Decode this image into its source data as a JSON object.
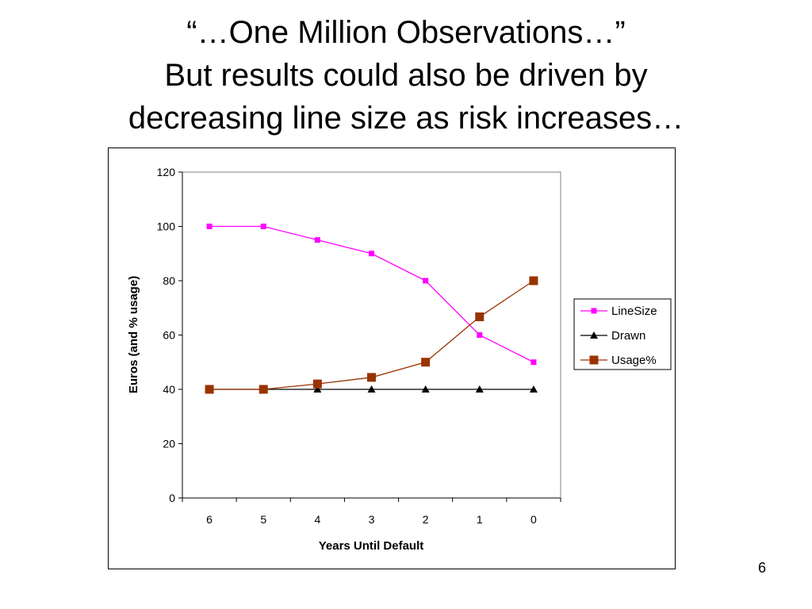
{
  "slide": {
    "title_lines": [
      "“…One Million Observations…”",
      "But results could also be driven by",
      "decreasing line size as risk increases…"
    ],
    "page_number": "6"
  },
  "chart_data": {
    "type": "line",
    "categories": [
      "6",
      "5",
      "4",
      "3",
      "2",
      "1",
      "0"
    ],
    "xlabel": "Years Until Default",
    "ylabel": "Euros (and % usage)",
    "ylim": [
      0,
      120
    ],
    "yticks": [
      "0",
      "20",
      "40",
      "60",
      "80",
      "100",
      "120"
    ],
    "grid": false,
    "legend_position": "right",
    "series": [
      {
        "name": "LineSize",
        "values": [
          100,
          100,
          95,
          90,
          80,
          60,
          50
        ],
        "color": "#ff00ff",
        "marker": "small-square"
      },
      {
        "name": "Drawn",
        "values": [
          40,
          40,
          40,
          40,
          40,
          40,
          40
        ],
        "color": "#000000",
        "marker": "triangle"
      },
      {
        "name": "Usage%",
        "values": [
          40,
          40,
          42,
          44.4,
          50,
          66.7,
          80
        ],
        "color": "#993300",
        "marker": "square"
      }
    ]
  }
}
